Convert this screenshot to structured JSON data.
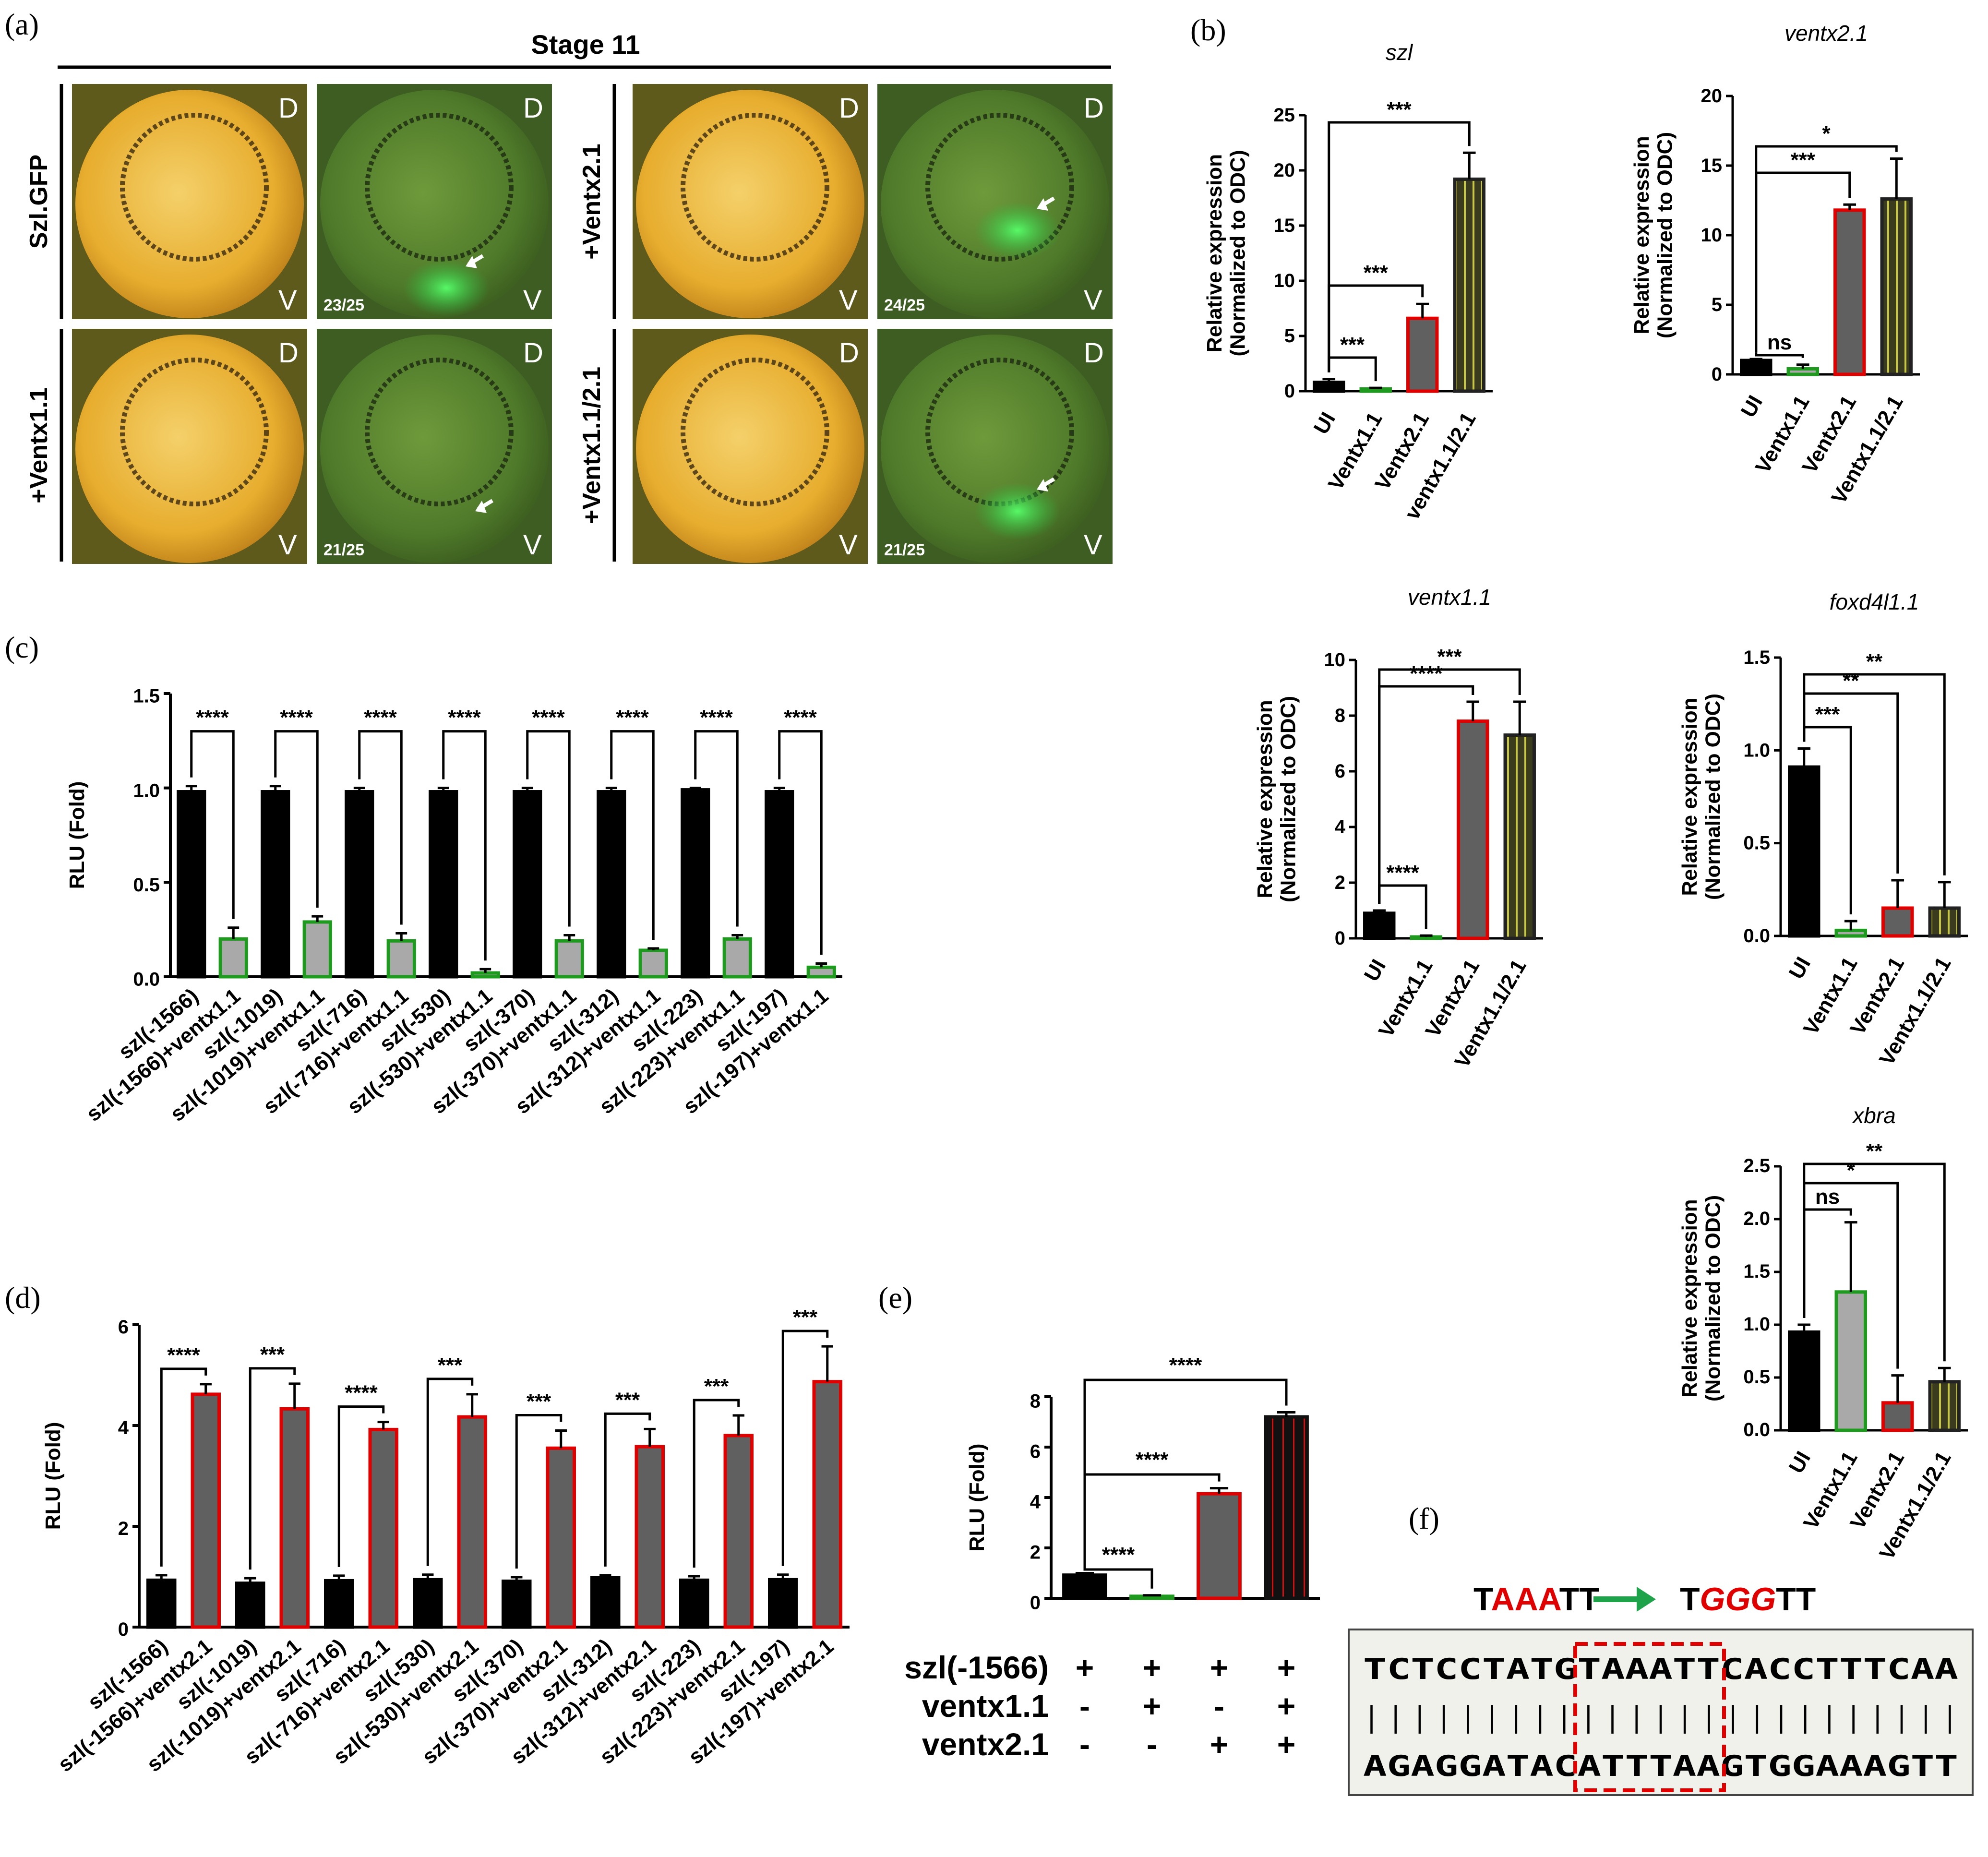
{
  "panel_labels": [
    "(a)",
    "(b)",
    "(c)",
    "(d)",
    "(e)",
    "(f)"
  ],
  "panel_a": {
    "stage_title": "Stage 11",
    "row_labels": [
      "Szl.GFP",
      "+Ventx1.1",
      "+Ventx2.1",
      "+Ventx1.1/2.1"
    ],
    "dorsal": "D",
    "ventral": "V",
    "counts": [
      "23/25",
      "21/25",
      "24/25",
      "21/25"
    ]
  },
  "chart_data": [
    {
      "id": "b_szl",
      "type": "bar",
      "title": "szl",
      "ylabel": [
        "Relative expression",
        "(Normalized to ODC)"
      ],
      "categories": [
        "UI",
        "Ventx1.1",
        "Ventx2.1",
        "ventx1.1/2.1"
      ],
      "values": [
        0.8,
        0.2,
        6.6,
        19.2
      ],
      "errors": [
        0.3,
        0.1,
        1.3,
        2.4
      ],
      "ylim": [
        0,
        25
      ],
      "yticks": [
        "0",
        "5",
        "10",
        "15",
        "20",
        "25"
      ],
      "comparisons": [
        {
          "from": 0,
          "to": 1,
          "label": "***"
        },
        {
          "from": 0,
          "to": 2,
          "label": "***"
        },
        {
          "from": 0,
          "to": 3,
          "label": "***"
        }
      ]
    },
    {
      "id": "b_ventx21",
      "type": "bar",
      "title": "ventx2.1",
      "ylabel": [
        "Relative expression",
        "(Normalized to ODC)"
      ],
      "categories": [
        "UI",
        "Ventx1.1",
        "Ventx2.1",
        "Ventx1.1/2.1"
      ],
      "values": [
        1.0,
        0.4,
        11.8,
        12.6
      ],
      "errors": [
        0.1,
        0.3,
        0.4,
        2.9
      ],
      "ylim": [
        0,
        20
      ],
      "yticks": [
        "0",
        "5",
        "10",
        "15",
        "20"
      ],
      "comparisons": [
        {
          "from": 0,
          "to": 1,
          "label": "ns"
        },
        {
          "from": 0,
          "to": 2,
          "label": "***"
        },
        {
          "from": 0,
          "to": 3,
          "label": "*"
        }
      ]
    },
    {
      "id": "b_ventx11",
      "type": "bar",
      "title": "ventx1.1",
      "ylabel": [
        "Relative expression",
        "(Normalized to ODC)"
      ],
      "categories": [
        "UI",
        "Ventx1.1",
        "Ventx2.1",
        "Ventx1.1/2.1"
      ],
      "values": [
        0.9,
        0.05,
        7.8,
        7.3
      ],
      "errors": [
        0.1,
        0.05,
        0.7,
        1.2
      ],
      "ylim": [
        0,
        10
      ],
      "yticks": [
        "0",
        "2",
        "4",
        "6",
        "8",
        "10"
      ],
      "comparisons": [
        {
          "from": 0,
          "to": 1,
          "label": "****"
        },
        {
          "from": 0,
          "to": 2,
          "label": "****"
        },
        {
          "from": 0,
          "to": 3,
          "label": "***"
        }
      ]
    },
    {
      "id": "b_foxd4l11",
      "type": "bar",
      "title": "foxd4l1.1",
      "ylabel": [
        "Relative expression",
        "(Normalized to ODC)"
      ],
      "categories": [
        "UI",
        "Ventx1.1",
        "Ventx2.1",
        "Ventx1.1/2.1"
      ],
      "values": [
        0.91,
        0.03,
        0.15,
        0.15
      ],
      "errors": [
        0.1,
        0.05,
        0.15,
        0.14
      ],
      "ylim": [
        0,
        1.5
      ],
      "yticks": [
        "0.0",
        "0.5",
        "1.0",
        "1.5"
      ],
      "comparisons": [
        {
          "from": 0,
          "to": 1,
          "label": "***"
        },
        {
          "from": 0,
          "to": 2,
          "label": "**"
        },
        {
          "from": 0,
          "to": 3,
          "label": "**"
        }
      ]
    },
    {
      "id": "b_xbra",
      "type": "bar",
      "title": "xbra",
      "ylabel": [
        "Relative expression",
        "(Normalized to ODC)"
      ],
      "categories": [
        "UI",
        "Ventx1.1",
        "Ventx2.1",
        "Ventx1.1/2.1"
      ],
      "values": [
        0.93,
        1.31,
        0.26,
        0.46
      ],
      "errors": [
        0.07,
        0.66,
        0.26,
        0.13
      ],
      "ylim": [
        0,
        2.5
      ],
      "yticks": [
        "0.0",
        "0.5",
        "1.0",
        "1.5",
        "2.0",
        "2.5"
      ],
      "comparisons": [
        {
          "from": 0,
          "to": 1,
          "label": "ns"
        },
        {
          "from": 0,
          "to": 2,
          "label": "*"
        },
        {
          "from": 0,
          "to": 3,
          "label": "**"
        }
      ]
    },
    {
      "id": "c",
      "type": "bar",
      "ylabel": "RLU (Fold)",
      "categories": [
        "szl(-1566)",
        "szl(-1566)+ventx1.1",
        "szl(-1019)",
        "szl(-1019)+ventx1.1",
        "szl(-716)",
        "szl(-716)+ventx1.1",
        "szl(-530)",
        "szl(-530)+ventx1.1",
        "szl(-370)",
        "szl(-370)+ventx1.1",
        "szl(-312)",
        "szl(-312)+ventx1.1",
        "szl(-223)",
        "szl(-223)+ventx1.1",
        "szl(-197)",
        "szl(-197)+ventx1.1"
      ],
      "values": [
        0.98,
        0.2,
        0.98,
        0.29,
        0.98,
        0.19,
        0.98,
        0.02,
        0.98,
        0.19,
        0.98,
        0.14,
        0.99,
        0.2,
        0.98,
        0.05
      ],
      "errors": [
        0.03,
        0.06,
        0.03,
        0.03,
        0.02,
        0.04,
        0.02,
        0.02,
        0.02,
        0.03,
        0.02,
        0.01,
        0.01,
        0.02,
        0.02,
        0.02
      ],
      "ylim": [
        0,
        1.5
      ],
      "yticks": [
        "0.0",
        "0.5",
        "1.0",
        "1.5"
      ],
      "comparisons": [
        {
          "from": 0,
          "to": 1,
          "label": "****"
        },
        {
          "from": 2,
          "to": 3,
          "label": "****"
        },
        {
          "from": 4,
          "to": 5,
          "label": "****"
        },
        {
          "from": 6,
          "to": 7,
          "label": "****"
        },
        {
          "from": 8,
          "to": 9,
          "label": "****"
        },
        {
          "from": 10,
          "to": 11,
          "label": "****"
        },
        {
          "from": 12,
          "to": 13,
          "label": "****"
        },
        {
          "from": 14,
          "to": 15,
          "label": "****"
        }
      ]
    },
    {
      "id": "d",
      "type": "bar",
      "ylabel": "RLU (Fold)",
      "categories": [
        "szl(-1566)",
        "szl(-1566)+ventx2.1",
        "szl(-1019)",
        "szl(-1019)+ventx2.1",
        "szl(-716)",
        "szl(-716)+ventx2.1",
        "szl(-530)",
        "szl(-530)+ventx2.1",
        "szl(-370)",
        "szl(-370)+ventx2.1",
        "szl(-312)",
        "szl(-312)+ventx2.1",
        "szl(-223)",
        "szl(-223)+ventx2.1",
        "szl(-197)",
        "szl(-197)+ventx2.1"
      ],
      "values": [
        0.93,
        4.62,
        0.87,
        4.33,
        0.92,
        3.92,
        0.94,
        4.17,
        0.91,
        3.55,
        0.98,
        3.58,
        0.93,
        3.8,
        0.94,
        4.87
      ],
      "errors": [
        0.1,
        0.2,
        0.1,
        0.5,
        0.1,
        0.15,
        0.1,
        0.45,
        0.08,
        0.35,
        0.05,
        0.35,
        0.08,
        0.4,
        0.1,
        0.7
      ],
      "ylim": [
        0,
        6
      ],
      "yticks": [
        "0",
        "2",
        "4",
        "6"
      ],
      "comparisons": [
        {
          "from": 0,
          "to": 1,
          "label": "****"
        },
        {
          "from": 2,
          "to": 3,
          "label": "***"
        },
        {
          "from": 4,
          "to": 5,
          "label": "****"
        },
        {
          "from": 6,
          "to": 7,
          "label": "***"
        },
        {
          "from": 8,
          "to": 9,
          "label": "***"
        },
        {
          "from": 10,
          "to": 11,
          "label": "***"
        },
        {
          "from": 12,
          "to": 13,
          "label": "***"
        },
        {
          "from": 14,
          "to": 15,
          "label": "***"
        }
      ]
    },
    {
      "id": "e",
      "type": "bar",
      "ylabel": "RLU (Fold)",
      "values": [
        0.92,
        0.08,
        4.15,
        7.2
      ],
      "errors": [
        0.08,
        0.04,
        0.22,
        0.18
      ],
      "ylim": [
        0,
        8
      ],
      "yticks": [
        "0",
        "2",
        "4",
        "6",
        "8"
      ],
      "row_labels": [
        "szl(-1566)",
        "ventx1.1",
        "ventx2.1"
      ],
      "signs": [
        [
          "+",
          "+",
          "+",
          "+"
        ],
        [
          "-",
          "+",
          "-",
          "+"
        ],
        [
          "-",
          "-",
          "+",
          "+"
        ]
      ],
      "comparisons": [
        {
          "from": 0,
          "to": 1,
          "label": "****"
        },
        {
          "from": 0,
          "to": 2,
          "label": "****"
        },
        {
          "from": 0,
          "to": 3,
          "label": "****"
        }
      ]
    }
  ],
  "panel_f": {
    "mut_from_prefix": "T",
    "mut_from_red": "AAA",
    "mut_from_suffix": "TT",
    "mut_to_prefix": "T",
    "mut_to_red": "GGG",
    "mut_to_suffix": "TT",
    "top_strand": "TCTCCTATGTAAATTCACCTTTCAA",
    "bonds": "| | | | | | | | | | | | | | | | | | | | | | | | |",
    "bottom_strand": "AGAGGATACATTTAAGTGGAAAGTT",
    "colors": {
      "mutation": "#e00000",
      "arrow": "#1fa34a",
      "box": "#e00000",
      "seq_bg": "#f1f1ec"
    }
  }
}
